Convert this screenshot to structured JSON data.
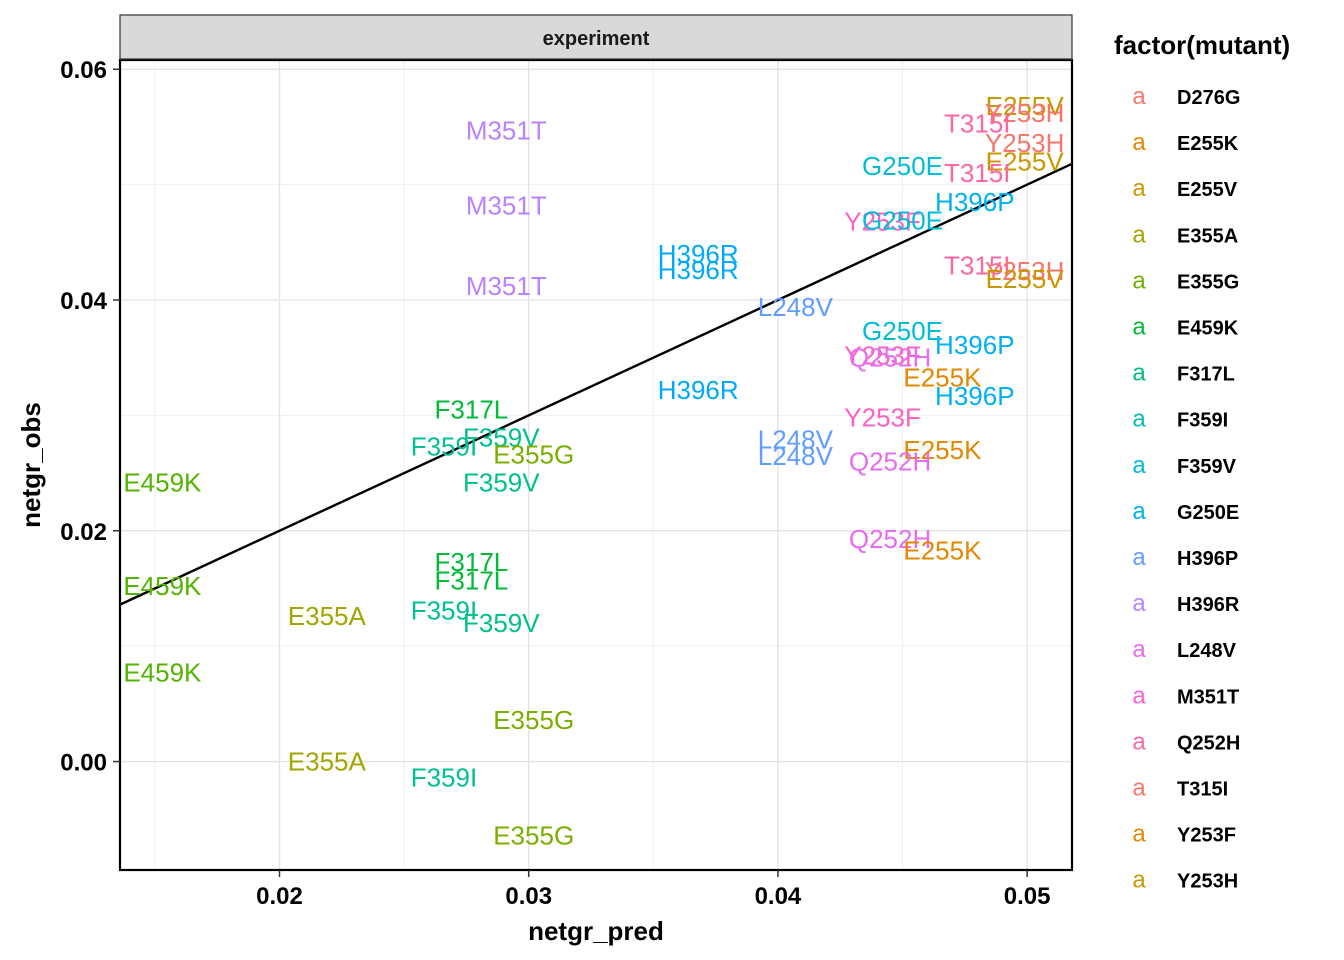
{
  "chart_data": {
    "type": "scatter",
    "facet_title": "experiment",
    "xlabel": "netgr_pred",
    "ylabel": "netgr_obs",
    "xlim": [
      0.0136,
      0.0518
    ],
    "ylim": [
      -0.0094,
      0.0608
    ],
    "x_ticks": [
      {
        "value": 0.02,
        "label": "0.02"
      },
      {
        "value": 0.03,
        "label": "0.03"
      },
      {
        "value": 0.04,
        "label": "0.04"
      },
      {
        "value": 0.05,
        "label": "0.05"
      }
    ],
    "y_ticks": [
      {
        "value": 0.0,
        "label": "0.00"
      },
      {
        "value": 0.02,
        "label": "0.02"
      },
      {
        "value": 0.04,
        "label": "0.04"
      },
      {
        "value": 0.06,
        "label": "0.06"
      }
    ],
    "grid": true,
    "fit_line": {
      "slope": 1.0,
      "intercept": 0.0
    },
    "legend": {
      "title": "factor(mutant)",
      "position": "right",
      "key_glyph": "a",
      "entries": [
        {
          "name": "D276G",
          "color": "#F8766D"
        },
        {
          "name": "E255K",
          "color": "#E58700"
        },
        {
          "name": "E255V",
          "color": "#C99800"
        },
        {
          "name": "E355A",
          "color": "#A3A500"
        },
        {
          "name": "E355G",
          "color": "#6BB100"
        },
        {
          "name": "E459K",
          "color": "#00BA38"
        },
        {
          "name": "F317L",
          "color": "#00BF7D"
        },
        {
          "name": "F359I",
          "color": "#00C0AF"
        },
        {
          "name": "F359V",
          "color": "#00BCD8"
        },
        {
          "name": "G250E",
          "color": "#00B0F6"
        },
        {
          "name": "H396P",
          "color": "#619CFF"
        },
        {
          "name": "H396R",
          "color": "#B983FF"
        },
        {
          "name": "L248V",
          "color": "#E76BF3"
        },
        {
          "name": "M351T",
          "color": "#FD61D1"
        },
        {
          "name": "Q252H",
          "color": "#FF67A4"
        },
        {
          "name": "T315I",
          "color": "#F8766D"
        },
        {
          "name": "Y253F",
          "color": "#E58700"
        },
        {
          "name": "Y253H",
          "color": "#C99800"
        }
      ]
    },
    "points": [
      {
        "label": "E255V",
        "x": 0.0499,
        "y": 0.0568,
        "color": "#C99800"
      },
      {
        "label": "Y253H",
        "x": 0.0499,
        "y": 0.0562,
        "color": "#F8766D"
      },
      {
        "label": "T315I",
        "x": 0.048,
        "y": 0.0553,
        "color": "#FF67A4"
      },
      {
        "label": "M351T",
        "x": 0.0291,
        "y": 0.0547,
        "color": "#B983FF"
      },
      {
        "label": "Y253H",
        "x": 0.0499,
        "y": 0.0536,
        "color": "#F8766D"
      },
      {
        "label": "E255V",
        "x": 0.0499,
        "y": 0.052,
        "color": "#C99800"
      },
      {
        "label": "G250E",
        "x": 0.045,
        "y": 0.0516,
        "color": "#00BCD8"
      },
      {
        "label": "T315I",
        "x": 0.048,
        "y": 0.051,
        "color": "#FF67A4"
      },
      {
        "label": "H396P",
        "x": 0.0479,
        "y": 0.0485,
        "color": "#00B0F6"
      },
      {
        "label": "M351T",
        "x": 0.0291,
        "y": 0.0482,
        "color": "#B983FF"
      },
      {
        "label": "Y253F",
        "x": 0.0442,
        "y": 0.0468,
        "color": "#FF61C3"
      },
      {
        "label": "G250E",
        "x": 0.045,
        "y": 0.0469,
        "color": "#00BCD8"
      },
      {
        "label": "H396R",
        "x": 0.0368,
        "y": 0.044,
        "color": "#00A9FF"
      },
      {
        "label": "H396R",
        "x": 0.0368,
        "y": 0.0426,
        "color": "#00A9FF"
      },
      {
        "label": "T315I",
        "x": 0.048,
        "y": 0.043,
        "color": "#FF67A4"
      },
      {
        "label": "Y253H",
        "x": 0.0499,
        "y": 0.0425,
        "color": "#F8766D"
      },
      {
        "label": "E255V",
        "x": 0.0499,
        "y": 0.0418,
        "color": "#C99800"
      },
      {
        "label": "M351T",
        "x": 0.0291,
        "y": 0.0412,
        "color": "#B983FF"
      },
      {
        "label": "L248V",
        "x": 0.0407,
        "y": 0.0394,
        "color": "#619CFF"
      },
      {
        "label": "G250E",
        "x": 0.045,
        "y": 0.0373,
        "color": "#00BCD8"
      },
      {
        "label": "H396P",
        "x": 0.0479,
        "y": 0.0361,
        "color": "#00B0F6"
      },
      {
        "label": "Y253F",
        "x": 0.0442,
        "y": 0.0352,
        "color": "#FF61C3"
      },
      {
        "label": "Q252H",
        "x": 0.0445,
        "y": 0.035,
        "color": "#E76BF3"
      },
      {
        "label": "E255K",
        "x": 0.0466,
        "y": 0.0333,
        "color": "#E58700"
      },
      {
        "label": "H396R",
        "x": 0.0368,
        "y": 0.0322,
        "color": "#00A9FF"
      },
      {
        "label": "H396P",
        "x": 0.0479,
        "y": 0.0317,
        "color": "#00B0F6"
      },
      {
        "label": "F317L",
        "x": 0.0277,
        "y": 0.0305,
        "color": "#00BA38"
      },
      {
        "label": "Y253F",
        "x": 0.0442,
        "y": 0.0298,
        "color": "#FF61C3"
      },
      {
        "label": "F359V",
        "x": 0.0289,
        "y": 0.0281,
        "color": "#00C08B"
      },
      {
        "label": "L248V",
        "x": 0.0407,
        "y": 0.0279,
        "color": "#619CFF"
      },
      {
        "label": "F359I",
        "x": 0.0266,
        "y": 0.0273,
        "color": "#00C094"
      },
      {
        "label": "E355G",
        "x": 0.0302,
        "y": 0.0266,
        "color": "#7CAE00"
      },
      {
        "label": "E255K",
        "x": 0.0466,
        "y": 0.027,
        "color": "#E58700"
      },
      {
        "label": "L248V",
        "x": 0.0407,
        "y": 0.0265,
        "color": "#619CFF"
      },
      {
        "label": "Q252H",
        "x": 0.0445,
        "y": 0.026,
        "color": "#E76BF3"
      },
      {
        "label": "F359V",
        "x": 0.0289,
        "y": 0.0242,
        "color": "#00C08B"
      },
      {
        "label": "E459K",
        "x": 0.0153,
        "y": 0.0242,
        "color": "#53B400"
      },
      {
        "label": "Q252H",
        "x": 0.0445,
        "y": 0.0193,
        "color": "#E76BF3"
      },
      {
        "label": "E255K",
        "x": 0.0466,
        "y": 0.0183,
        "color": "#E58700"
      },
      {
        "label": "F317L",
        "x": 0.0277,
        "y": 0.0173,
        "color": "#00BA38"
      },
      {
        "label": "F317L",
        "x": 0.0277,
        "y": 0.0157,
        "color": "#00BA38"
      },
      {
        "label": "E459K",
        "x": 0.0153,
        "y": 0.0152,
        "color": "#53B400"
      },
      {
        "label": "F359I",
        "x": 0.0266,
        "y": 0.0131,
        "color": "#00C094"
      },
      {
        "label": "E355A",
        "x": 0.0219,
        "y": 0.0126,
        "color": "#A3A500"
      },
      {
        "label": "F359V",
        "x": 0.0289,
        "y": 0.012,
        "color": "#00C08B"
      },
      {
        "label": "E459K",
        "x": 0.0153,
        "y": 0.0077,
        "color": "#53B400"
      },
      {
        "label": "E355G",
        "x": 0.0302,
        "y": 0.0036,
        "color": "#7CAE00"
      },
      {
        "label": "E355A",
        "x": 0.0219,
        "y": 0.0,
        "color": "#A3A500"
      },
      {
        "label": "F359I",
        "x": 0.0266,
        "y": -0.0014,
        "color": "#00C094"
      },
      {
        "label": "E355G",
        "x": 0.0302,
        "y": -0.0064,
        "color": "#7CAE00"
      }
    ]
  }
}
